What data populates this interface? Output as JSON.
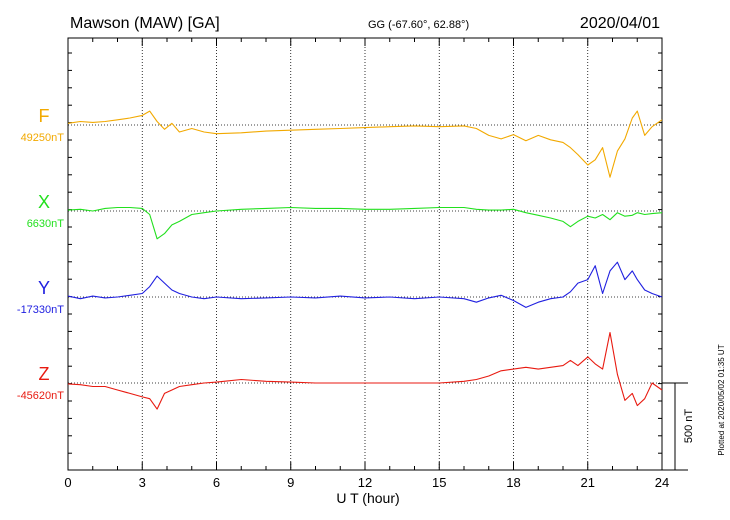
{
  "title": "Mawson (MAW)  [GA]",
  "coordinates": "GG (-67.60°,  62.88°)",
  "date": "2020/04/01",
  "plotted_note": "Plotted at 2020/05/02 01:35 UT",
  "scale_label": "500 nT",
  "chart_data": {
    "type": "line",
    "title": "Mawson (MAW)  [GA]",
    "xlabel": "U T (hour)",
    "ylabel": "",
    "xlim": [
      0,
      24
    ],
    "xticks": [
      0,
      3,
      6,
      9,
      12,
      15,
      18,
      21,
      24
    ],
    "grid": true,
    "legend": "none",
    "scale_bar_nT": 500,
    "series": [
      {
        "name": "F",
        "baseline_label": "49250nT",
        "color": "#f2a900",
        "x": [
          0,
          0.5,
          1,
          1.5,
          2,
          2.5,
          3,
          3.3,
          3.6,
          3.9,
          4.2,
          4.5,
          5,
          5.5,
          6,
          7,
          8,
          9,
          10,
          11,
          12,
          13,
          14,
          15,
          16,
          16.5,
          17,
          17.5,
          18,
          18.5,
          19,
          19.5,
          20,
          20.3,
          20.6,
          21,
          21.3,
          21.6,
          21.9,
          22.2,
          22.5,
          22.8,
          23,
          23.3,
          23.6,
          24
        ],
        "y": [
          10,
          20,
          15,
          20,
          30,
          40,
          55,
          80,
          20,
          -25,
          10,
          -40,
          -20,
          -40,
          -50,
          -45,
          -35,
          -30,
          -25,
          -20,
          -15,
          -10,
          -5,
          -10,
          -5,
          -20,
          -60,
          -80,
          -55,
          -90,
          -60,
          -85,
          -100,
          -130,
          -170,
          -230,
          -200,
          -130,
          -300,
          -150,
          -80,
          40,
          80,
          -60,
          -10,
          30
        ]
      },
      {
        "name": "X",
        "baseline_label": "6630nT",
        "color": "#22e01e",
        "x": [
          0,
          0.5,
          1,
          1.5,
          2,
          2.5,
          3,
          3.3,
          3.6,
          3.9,
          4.2,
          4.5,
          5,
          5.5,
          6,
          7,
          8,
          9,
          10,
          11,
          12,
          13,
          14,
          15,
          16,
          16.5,
          17,
          17.5,
          18,
          18.5,
          19,
          19.5,
          20,
          20.3,
          20.6,
          21,
          21.3,
          21.6,
          21.9,
          22.2,
          22.5,
          22.8,
          23,
          23.3,
          23.6,
          24
        ],
        "y": [
          5,
          10,
          0,
          15,
          20,
          20,
          15,
          -20,
          -160,
          -130,
          -80,
          -60,
          -20,
          -10,
          0,
          10,
          15,
          20,
          15,
          15,
          10,
          10,
          15,
          20,
          20,
          10,
          5,
          5,
          10,
          -10,
          -25,
          -40,
          -60,
          -90,
          -60,
          -30,
          -40,
          -20,
          -50,
          -10,
          -30,
          -25,
          -10,
          -20,
          -15,
          -10
        ]
      },
      {
        "name": "Y",
        "baseline_label": "-17330nT",
        "color": "#2020e0",
        "x": [
          0,
          0.5,
          1,
          1.5,
          2,
          2.5,
          3,
          3.3,
          3.6,
          3.9,
          4.2,
          4.5,
          5,
          5.5,
          6,
          7,
          8,
          9,
          10,
          11,
          12,
          13,
          14,
          15,
          16,
          16.5,
          17,
          17.5,
          18,
          18.5,
          19,
          19.5,
          20,
          20.3,
          20.6,
          21,
          21.3,
          21.6,
          21.9,
          22.2,
          22.5,
          22.8,
          23,
          23.3,
          23.6,
          24
        ],
        "y": [
          5,
          -10,
          5,
          -5,
          0,
          10,
          20,
          60,
          120,
          80,
          40,
          20,
          0,
          -10,
          0,
          -10,
          -5,
          0,
          -5,
          5,
          -5,
          0,
          -10,
          0,
          -10,
          -30,
          -5,
          10,
          -20,
          -60,
          -30,
          -10,
          0,
          30,
          80,
          100,
          180,
          20,
          150,
          200,
          100,
          150,
          100,
          40,
          20,
          0
        ]
      },
      {
        "name": "Z",
        "baseline_label": "-45620nT",
        "color": "#e81a10",
        "x": [
          0,
          0.5,
          1,
          1.5,
          2,
          2.5,
          3,
          3.3,
          3.6,
          3.9,
          4.2,
          4.5,
          5,
          5.5,
          6,
          7,
          8,
          9,
          10,
          11,
          12,
          13,
          14,
          15,
          16,
          16.5,
          17,
          17.5,
          18,
          18.5,
          19,
          19.5,
          20,
          20.3,
          20.6,
          21,
          21.3,
          21.6,
          21.9,
          22.2,
          22.5,
          22.8,
          23,
          23.3,
          23.6,
          24
        ],
        "y": [
          -5,
          -10,
          -20,
          -20,
          -40,
          -60,
          -80,
          -90,
          -150,
          -60,
          -40,
          -20,
          -10,
          0,
          5,
          20,
          10,
          5,
          0,
          0,
          0,
          0,
          0,
          0,
          10,
          20,
          40,
          70,
          80,
          90,
          80,
          90,
          100,
          130,
          100,
          150,
          110,
          80,
          290,
          50,
          -100,
          -60,
          -130,
          -90,
          0,
          -40
        ]
      }
    ]
  }
}
